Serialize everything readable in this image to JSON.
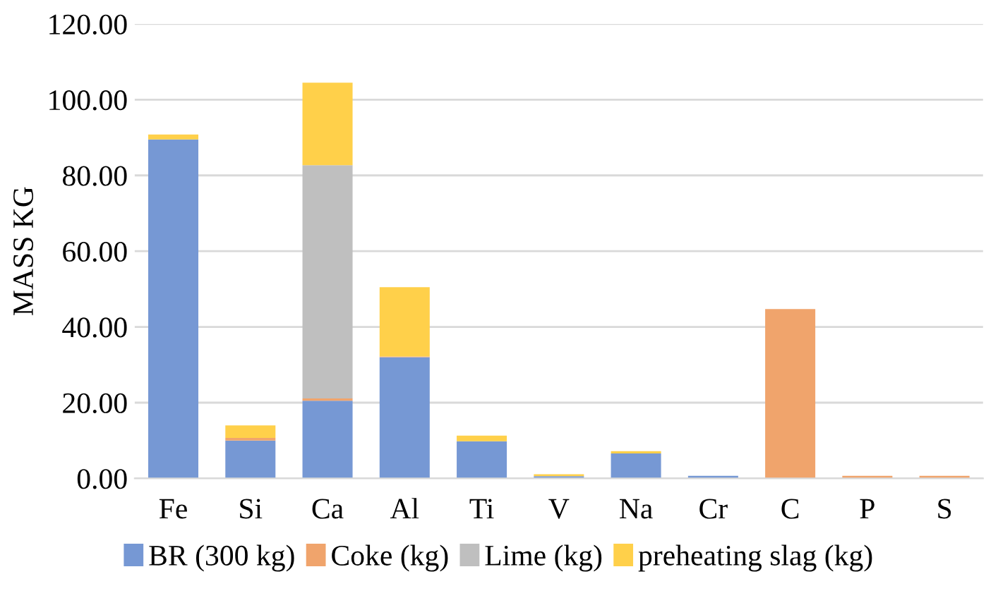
{
  "chart_data": {
    "type": "bar",
    "stacked": true,
    "ylabel": "MASS KG",
    "categories": [
      "Fe",
      "Si",
      "Ca",
      "Al",
      "Ti",
      "V",
      "Na",
      "Cr",
      "C",
      "P",
      "S"
    ],
    "series": [
      {
        "name": "BR (300 kg)",
        "color": "#7698d4",
        "values": [
          89.5,
          10,
          20.5,
          32,
          9.8,
          0.6,
          6.6,
          0.7,
          0,
          0,
          0
        ]
      },
      {
        "name": "Coke (kg)",
        "color": "#f0a46c",
        "values": [
          0,
          0.7,
          0.6,
          0.2,
          0,
          0,
          0,
          0,
          44.7,
          0.7,
          0.7
        ]
      },
      {
        "name": "Lime (kg)",
        "color": "#bfbfbf",
        "values": [
          0,
          0,
          61.6,
          0,
          0,
          0,
          0,
          0,
          0,
          0,
          0
        ]
      },
      {
        "name": "preheating slag (kg)",
        "color": "#ffd04a",
        "values": [
          1.3,
          3.3,
          21.8,
          18.3,
          1.5,
          0.5,
          0.6,
          0,
          0,
          0,
          0
        ]
      }
    ],
    "ylim": [
      0,
      120
    ],
    "yticks": [
      {
        "value": 0,
        "label": "0.00"
      },
      {
        "value": 20,
        "label": "20.00"
      },
      {
        "value": 40,
        "label": "40.00"
      },
      {
        "value": 60,
        "label": "60.00"
      },
      {
        "value": 80,
        "label": "80.00"
      },
      {
        "value": 100,
        "label": "100.00"
      },
      {
        "value": 120,
        "label": "120.00"
      }
    ],
    "grid": "y",
    "legend": "bottom"
  }
}
